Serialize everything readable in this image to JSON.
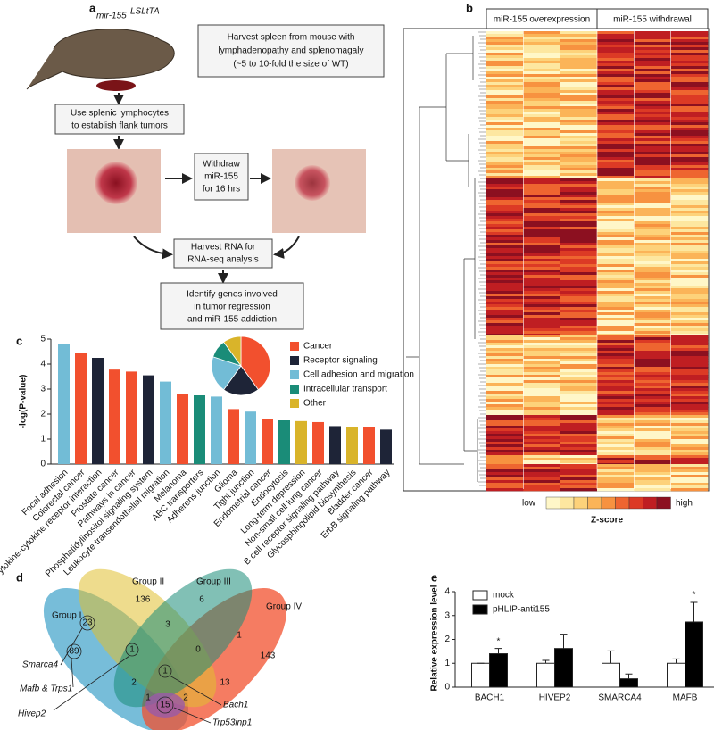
{
  "panel_a": {
    "label": "a",
    "mouse_label": "mir-155",
    "mouse_superscript": "LSLtTA",
    "harvest_spleen": [
      "Harvest spleen from mouse with",
      "lymphadenopathy and splenomagaly",
      "(~5 to 10-fold the size of WT)"
    ],
    "splenic": [
      "Use splenic lymphocytes",
      "to establish flank tumors"
    ],
    "withdraw": [
      "Withdraw",
      "miR-155",
      "for 16 hrs"
    ],
    "harvest_rna": [
      "Harvest RNA for",
      "RNA-seq analysis"
    ],
    "identify": [
      "Identify genes involved",
      "in tumor regression",
      "and miR-155 addiction"
    ]
  },
  "panel_b": {
    "label": "b",
    "groups": [
      "miR-155 overexpression",
      "miR-155 withdrawal"
    ],
    "low": "low",
    "high": "high",
    "scale_title": "Z-score",
    "colors": [
      "#fff7c8",
      "#fde7a0",
      "#fdd27a",
      "#fbb458",
      "#f79240",
      "#ee6530",
      "#dc3a25",
      "#bf1e22",
      "#8c1020"
    ]
  },
  "panel_c": {
    "label": "c"
  },
  "panel_d": {
    "label": "d",
    "groups": [
      "Group I",
      "Group II",
      "Group III",
      "Group IV"
    ],
    "counts": [
      136,
      6,
      23,
      89,
      3,
      1,
      0,
      1,
      143,
      2,
      1,
      13,
      1,
      2,
      15
    ],
    "genes": [
      "Smarca4",
      "Mafb & Trps1",
      "Hivep2",
      "Bach1",
      "Trp53inp1"
    ]
  },
  "panel_e": {
    "label": "e"
  },
  "chart_data": [
    {
      "type": "bar",
      "ylabel": "-log(P-value)",
      "ylim": [
        0,
        5
      ],
      "yticks": [
        0,
        1,
        2,
        3,
        4,
        5
      ],
      "categories": [
        "Focal adhesion",
        "Colorectal cancer",
        "Cytokine-cytokine receptor interaction",
        "Prostate cancer",
        "Pathways in cancer",
        "Phosphatidylinositol signaling system",
        "Leukocyte transendothelial migration",
        "Melanoma",
        "ABC transporters",
        "Adherens junction",
        "Glioma",
        "Tight junction",
        "Endometrial cancer",
        "Endocytosis",
        "Long-term depression",
        "Non-small cell lung cancer",
        "B cell receptor signaling pathway",
        "Glycosphingolipid biosynthesis",
        "Bladder cancer",
        "ErbB signaling pathway"
      ],
      "values": [
        4.8,
        4.45,
        4.25,
        3.78,
        3.7,
        3.55,
        3.3,
        2.8,
        2.75,
        2.7,
        2.2,
        2.1,
        1.8,
        1.75,
        1.72,
        1.68,
        1.52,
        1.5,
        1.48,
        1.38
      ],
      "colors": [
        "#72bcd6",
        "#f2502e",
        "#1e2437",
        "#f2502e",
        "#f2502e",
        "#1e2437",
        "#72bcd6",
        "#f2502e",
        "#1a8c78",
        "#72bcd6",
        "#f2502e",
        "#72bcd6",
        "#f2502e",
        "#1a8c78",
        "#d9b42a",
        "#f2502e",
        "#1e2437",
        "#d9b42a",
        "#f2502e",
        "#1e2437"
      ]
    },
    {
      "type": "pie",
      "categories": [
        "Cancer",
        "Receptor signaling",
        "Cell adhesion and migration",
        "Intracellular transport",
        "Other"
      ],
      "values": [
        40,
        20,
        20,
        10,
        10
      ],
      "colors": [
        "#f2502e",
        "#1e2437",
        "#72bcd6",
        "#1a8c78",
        "#d9b42a"
      ]
    },
    {
      "type": "grouped_bar",
      "ylabel": "Relative expression level",
      "ylim": [
        0,
        4
      ],
      "yticks": [
        0,
        1,
        2,
        3,
        4
      ],
      "categories": [
        "BACH1",
        "HIVEP2",
        "SMARCA4",
        "MAFB"
      ],
      "significance": [
        "*",
        null,
        null,
        "*"
      ],
      "series": [
        {
          "name": "mock",
          "color": "#ffffff",
          "values": [
            1,
            1,
            1,
            1
          ],
          "errors": [
            0,
            0.12,
            0.52,
            0.18
          ]
        },
        {
          "name": "pHLIP-anti155",
          "color": "#000000",
          "values": [
            1.4,
            1.62,
            0.35,
            2.73
          ],
          "errors": [
            0.22,
            0.6,
            0.2,
            0.82
          ]
        }
      ]
    }
  ]
}
